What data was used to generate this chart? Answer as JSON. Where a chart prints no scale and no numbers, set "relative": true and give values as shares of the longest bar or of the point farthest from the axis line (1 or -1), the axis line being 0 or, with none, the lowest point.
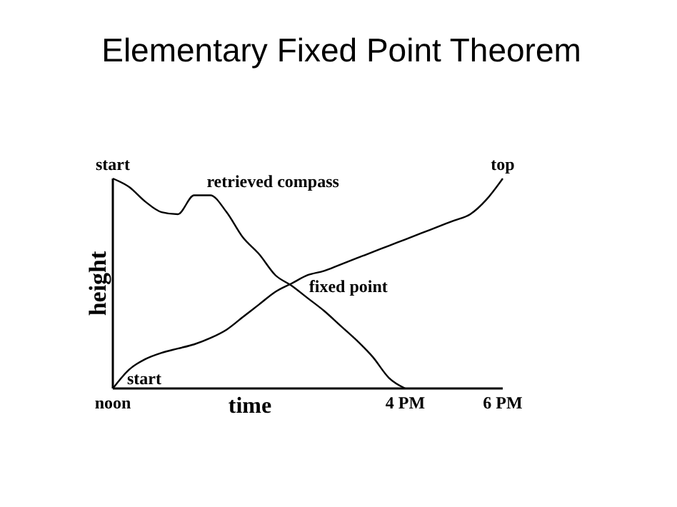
{
  "chart_data": {
    "type": "line",
    "title": "Elementary Fixed Point Theorem",
    "xlabel": "time",
    "ylabel": "height",
    "relative": true,
    "grid": false,
    "legend": false,
    "marker": "none",
    "line_style": "solid",
    "categories": [
      "noon",
      null,
      null,
      null,
      null,
      null,
      null,
      null,
      null,
      null,
      null,
      null,
      null,
      null,
      null,
      null,
      null,
      null,
      "4 PM",
      null,
      null,
      null,
      null,
      null,
      "6 PM"
    ],
    "series": [
      {
        "color": "#000000",
        "values": [
          1,
          0.96,
          0.89,
          0.84,
          0.83,
          0.92,
          0.92,
          0.84,
          0.72,
          0.64,
          0.54,
          0.49,
          0.43,
          0.37,
          0.3,
          0.23,
          0.15,
          0.05,
          0,
          null,
          null,
          null,
          null,
          null,
          null
        ]
      },
      {
        "color": "#000000",
        "values": [
          0,
          0.09,
          0.14,
          0.17,
          0.19,
          0.21,
          0.24,
          0.28,
          0.34,
          0.4,
          0.46,
          0.5,
          0.54,
          0.56,
          0.59,
          0.62,
          0.65,
          0.68,
          0.71,
          0.74,
          0.77,
          0.8,
          0.83,
          0.9,
          1
        ]
      }
    ],
    "annotations": [
      {
        "text": "start",
        "x": "noon",
        "y": 1
      },
      "retrieved compass",
      {
        "text": "top",
        "x": "6 PM",
        "y": 1
      },
      "fixed point",
      {
        "text": "start",
        "x": "noon",
        "y": 0
      }
    ]
  }
}
